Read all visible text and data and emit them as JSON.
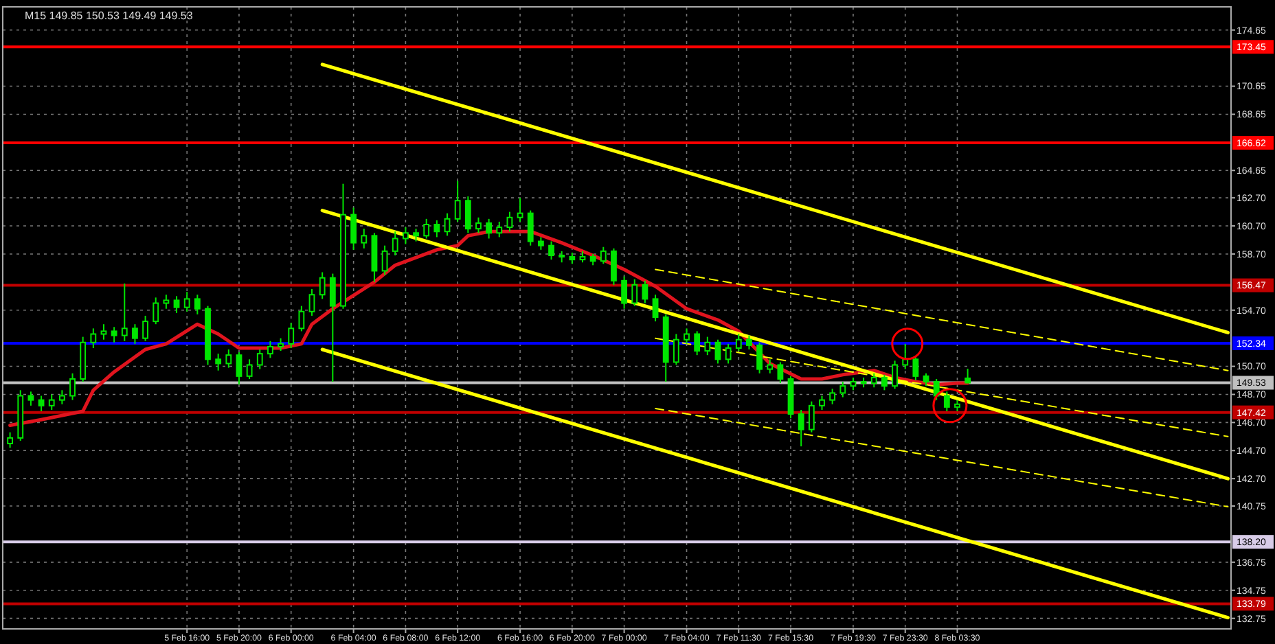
{
  "chart_data": {
    "type": "candlestick",
    "title": "M15 149.85 150.53 149.49 149.53",
    "color": "#00e600",
    "categories": [
      null,
      null,
      null,
      null,
      null,
      null,
      null,
      null,
      null,
      null,
      null,
      null,
      null,
      null,
      null,
      null,
      null,
      "5 Feb 16:00",
      null,
      null,
      null,
      null,
      "5 Feb 20:00",
      null,
      null,
      null,
      null,
      "6 Feb 00:00",
      null,
      null,
      null,
      null,
      null,
      "6 Feb 04:00",
      null,
      null,
      null,
      null,
      "6 Feb 08:00",
      null,
      null,
      null,
      null,
      "6 Feb 12:00",
      null,
      null,
      null,
      null,
      null,
      "6 Feb 16:00",
      null,
      null,
      null,
      null,
      "6 Feb 20:00",
      null,
      null,
      null,
      null,
      "7 Feb 00:00",
      null,
      null,
      null,
      null,
      null,
      "7 Feb 04:00",
      null,
      null,
      null,
      null,
      "7 Feb 11:30",
      null,
      null,
      null,
      null,
      "7 Feb 15:30",
      null,
      null,
      null,
      null,
      null,
      "7 Feb 19:30",
      null,
      null,
      null,
      null,
      "7 Feb 23:30",
      null,
      null,
      null,
      null,
      "8 Feb 03:30",
      null,
      null,
      null,
      null,
      null,
      null,
      null,
      null,
      null,
      null,
      null,
      null,
      null,
      null,
      null,
      null,
      null,
      null,
      null,
      null,
      null,
      null,
      null,
      null,
      null,
      null
    ],
    "ohlc": [
      [
        145.2,
        146.0,
        144.9,
        145.6
      ],
      [
        145.6,
        149.0,
        145.4,
        148.6
      ],
      [
        148.6,
        148.9,
        147.9,
        148.3
      ],
      [
        148.3,
        148.6,
        147.5,
        147.9
      ],
      [
        147.9,
        148.7,
        147.6,
        148.3
      ],
      [
        148.3,
        149.0,
        148.0,
        148.6
      ],
      [
        148.6,
        150.2,
        148.3,
        149.8
      ],
      [
        149.8,
        152.8,
        149.6,
        152.4
      ],
      [
        152.4,
        153.4,
        152.0,
        153.0
      ],
      [
        153.0,
        153.7,
        152.6,
        153.2
      ],
      [
        153.2,
        153.5,
        152.4,
        152.9
      ],
      [
        152.9,
        156.6,
        152.5,
        153.4
      ],
      [
        153.4,
        153.7,
        152.3,
        152.7
      ],
      [
        152.7,
        154.3,
        152.5,
        153.9
      ],
      [
        153.9,
        155.6,
        153.7,
        155.2
      ],
      [
        155.2,
        155.8,
        154.8,
        155.4
      ],
      [
        155.4,
        155.7,
        154.5,
        154.9
      ],
      [
        154.9,
        156.0,
        154.6,
        155.5
      ],
      [
        155.5,
        155.8,
        154.4,
        154.8
      ],
      [
        154.8,
        155.0,
        150.8,
        151.2
      ],
      [
        151.2,
        151.6,
        150.4,
        150.9
      ],
      [
        150.9,
        151.9,
        150.6,
        151.5
      ],
      [
        151.5,
        151.7,
        149.4,
        150.0
      ],
      [
        150.0,
        151.2,
        149.8,
        150.8
      ],
      [
        150.8,
        151.9,
        150.5,
        151.6
      ],
      [
        151.6,
        152.5,
        151.3,
        152.1
      ],
      [
        152.1,
        152.7,
        151.8,
        152.3
      ],
      [
        152.3,
        153.8,
        152.0,
        153.4
      ],
      [
        153.4,
        155.0,
        153.2,
        154.6
      ],
      [
        154.6,
        156.2,
        154.3,
        155.8
      ],
      [
        155.8,
        157.4,
        155.5,
        157.0
      ],
      [
        157.0,
        157.3,
        149.6,
        155.0
      ],
      [
        155.0,
        163.7,
        154.8,
        161.5
      ],
      [
        161.5,
        162.0,
        159.0,
        159.5
      ],
      [
        159.5,
        160.5,
        159.1,
        160.0
      ],
      [
        160.0,
        160.2,
        156.7,
        157.5
      ],
      [
        157.5,
        159.3,
        157.2,
        158.9
      ],
      [
        158.9,
        160.3,
        158.6,
        159.8
      ],
      [
        159.8,
        160.6,
        159.4,
        160.2
      ],
      [
        160.2,
        160.5,
        159.6,
        160.0
      ],
      [
        160.0,
        161.2,
        159.8,
        160.8
      ],
      [
        160.8,
        161.1,
        159.9,
        160.3
      ],
      [
        160.3,
        161.6,
        160.0,
        161.2
      ],
      [
        161.2,
        163.9,
        161.0,
        162.5
      ],
      [
        162.5,
        162.8,
        160.2,
        160.5
      ],
      [
        160.5,
        161.3,
        160.2,
        160.9
      ],
      [
        160.9,
        161.2,
        159.8,
        160.2
      ],
      [
        160.2,
        161.0,
        159.9,
        160.6
      ],
      [
        160.6,
        161.7,
        160.3,
        161.3
      ],
      [
        161.3,
        162.7,
        161.0,
        161.6
      ],
      [
        161.6,
        161.8,
        159.3,
        159.6
      ],
      [
        159.6,
        159.9,
        159.0,
        159.3
      ],
      [
        159.3,
        159.6,
        158.3,
        158.6
      ],
      [
        158.6,
        158.9,
        158.1,
        158.5
      ],
      [
        158.5,
        158.8,
        158.0,
        158.3
      ],
      [
        158.3,
        158.9,
        158.1,
        158.5
      ],
      [
        158.5,
        158.7,
        157.9,
        158.2
      ],
      [
        158.2,
        159.2,
        158.0,
        158.9
      ],
      [
        158.9,
        159.1,
        156.5,
        156.8
      ],
      [
        156.8,
        157.1,
        154.8,
        155.2
      ],
      [
        155.2,
        156.9,
        155.0,
        156.5
      ],
      [
        156.5,
        156.8,
        155.2,
        155.5
      ],
      [
        155.5,
        155.8,
        153.9,
        154.2
      ],
      [
        154.2,
        154.4,
        149.6,
        151.0
      ],
      [
        151.0,
        153.0,
        150.8,
        152.6
      ],
      [
        152.6,
        153.4,
        152.3,
        153.0
      ],
      [
        153.0,
        153.2,
        151.5,
        151.8
      ],
      [
        151.8,
        152.8,
        151.5,
        152.4
      ],
      [
        152.4,
        152.6,
        150.9,
        151.2
      ],
      [
        151.2,
        152.3,
        150.9,
        152.0
      ],
      [
        152.0,
        153.0,
        151.8,
        152.6
      ],
      [
        152.6,
        152.9,
        151.9,
        152.2
      ],
      [
        152.2,
        152.4,
        150.2,
        150.5
      ],
      [
        150.5,
        151.2,
        150.2,
        150.8
      ],
      [
        150.8,
        151.0,
        149.5,
        149.8
      ],
      [
        149.8,
        150.0,
        147.0,
        147.3
      ],
      [
        147.3,
        147.6,
        145.0,
        146.2
      ],
      [
        146.2,
        148.2,
        146.0,
        147.9
      ],
      [
        147.9,
        148.6,
        147.6,
        148.3
      ],
      [
        148.3,
        149.1,
        148.0,
        148.8
      ],
      [
        148.8,
        149.6,
        148.5,
        149.3
      ],
      [
        149.3,
        149.9,
        149.0,
        149.6
      ],
      [
        149.6,
        149.9,
        149.2,
        149.5
      ],
      [
        149.5,
        150.2,
        149.2,
        149.9
      ],
      [
        149.9,
        150.1,
        149.0,
        149.3
      ],
      [
        149.3,
        151.1,
        149.1,
        150.8
      ],
      [
        150.8,
        152.3,
        150.5,
        151.2
      ],
      [
        151.2,
        151.4,
        149.7,
        150.0
      ],
      [
        150.0,
        150.2,
        149.3,
        149.6
      ],
      [
        149.6,
        149.8,
        148.3,
        148.6
      ],
      [
        148.6,
        148.9,
        147.5,
        147.8
      ],
      [
        147.8,
        148.3,
        147.5,
        148.0
      ],
      [
        149.85,
        150.53,
        149.49,
        149.53
      ],
      null,
      null,
      null,
      null,
      null,
      null,
      null,
      null,
      null,
      null,
      null,
      null,
      null,
      null,
      null,
      null,
      null,
      null,
      null,
      null,
      null,
      null,
      null,
      null,
      null
    ],
    "series": [
      {
        "type": "line",
        "color": "#e0141e",
        "values": [
          146.5,
          null,
          null,
          146.9,
          null,
          null,
          null,
          147.5,
          149.0,
          null,
          150.3,
          null,
          null,
          151.9,
          null,
          152.3,
          null,
          null,
          153.7,
          null,
          153.0,
          null,
          152.0,
          null,
          null,
          null,
          152.0,
          null,
          152.3,
          153.7,
          null,
          154.8,
          null,
          null,
          null,
          156.7,
          null,
          157.9,
          null,
          null,
          null,
          159.0,
          null,
          159.3,
          160.0,
          null,
          160.3,
          null,
          null,
          null,
          160.3,
          null,
          null,
          159.5,
          null,
          null,
          158.6,
          null,
          null,
          157.6,
          null,
          null,
          156.4,
          null,
          null,
          154.8,
          null,
          null,
          154.0,
          null,
          153.2,
          null,
          null,
          150.9,
          null,
          null,
          149.8,
          null,
          149.8,
          null,
          150.1,
          null,
          null,
          150.4,
          null,
          149.9,
          null,
          149.6,
          null,
          149.4,
          null,
          149.5,
          149.5,
          null,
          null,
          null,
          null,
          null,
          null,
          null,
          null,
          null,
          null,
          null,
          null,
          null,
          null,
          null,
          null,
          null,
          null,
          null,
          null,
          null,
          null,
          null,
          null,
          null
        ]
      },
      {
        "type": "line",
        "color": "#ffff00",
        "values": [
          null,
          null,
          null,
          null,
          null,
          null,
          null,
          null,
          null,
          null,
          null,
          null,
          null,
          null,
          null,
          null,
          null,
          null,
          null,
          null,
          null,
          null,
          null,
          null,
          null,
          null,
          null,
          null,
          null,
          null,
          172.2,
          null,
          null,
          null,
          null,
          null,
          null,
          null,
          null,
          null,
          null,
          null,
          null,
          null,
          null,
          null,
          null,
          null,
          null,
          null,
          null,
          null,
          null,
          null,
          null,
          null,
          null,
          null,
          null,
          null,
          null,
          null,
          null,
          null,
          null,
          null,
          null,
          null,
          null,
          null,
          null,
          null,
          null,
          null,
          null,
          null,
          null,
          null,
          null,
          null,
          null,
          null,
          null,
          null,
          null,
          null,
          null,
          null,
          null,
          null,
          null,
          null,
          null,
          null,
          null,
          null,
          null,
          null,
          null,
          null,
          null,
          null,
          null,
          null,
          null,
          null,
          null,
          null,
          null,
          null,
          null,
          null,
          null,
          null,
          null,
          null,
          null,
          153.1
        ]
      },
      {
        "type": "line",
        "color": "#ffff00",
        "values": [
          null,
          null,
          null,
          null,
          null,
          null,
          null,
          null,
          null,
          null,
          null,
          null,
          null,
          null,
          null,
          null,
          null,
          null,
          null,
          null,
          null,
          null,
          null,
          null,
          null,
          null,
          null,
          null,
          null,
          null,
          161.8,
          null,
          null,
          null,
          null,
          null,
          null,
          null,
          null,
          null,
          null,
          null,
          null,
          null,
          null,
          null,
          null,
          null,
          null,
          null,
          null,
          null,
          null,
          null,
          null,
          null,
          null,
          null,
          null,
          null,
          null,
          null,
          null,
          null,
          null,
          null,
          null,
          null,
          null,
          null,
          null,
          null,
          null,
          null,
          null,
          null,
          null,
          null,
          null,
          null,
          null,
          null,
          null,
          null,
          null,
          null,
          null,
          null,
          null,
          null,
          null,
          null,
          null,
          null,
          null,
          null,
          null,
          null,
          null,
          null,
          null,
          null,
          null,
          null,
          null,
          null,
          null,
          null,
          null,
          null,
          null,
          null,
          null,
          null,
          null,
          null,
          null,
          142.7
        ]
      },
      {
        "type": "line",
        "color": "#ffff00",
        "values": [
          null,
          null,
          null,
          null,
          null,
          null,
          null,
          null,
          null,
          null,
          null,
          null,
          null,
          null,
          null,
          null,
          null,
          null,
          null,
          null,
          null,
          null,
          null,
          null,
          null,
          null,
          null,
          null,
          null,
          null,
          151.9,
          null,
          null,
          null,
          null,
          null,
          null,
          null,
          null,
          null,
          null,
          null,
          null,
          null,
          null,
          null,
          null,
          null,
          null,
          null,
          null,
          null,
          null,
          null,
          null,
          null,
          null,
          null,
          null,
          null,
          null,
          null,
          null,
          null,
          null,
          null,
          null,
          null,
          null,
          null,
          null,
          null,
          null,
          null,
          null,
          null,
          null,
          null,
          null,
          null,
          null,
          null,
          null,
          null,
          null,
          null,
          null,
          null,
          null,
          null,
          null,
          null,
          null,
          null,
          null,
          null,
          null,
          null,
          null,
          null,
          null,
          null,
          null,
          null,
          null,
          null,
          null,
          null,
          null,
          null,
          null,
          null,
          null,
          null,
          null,
          null,
          null,
          132.8
        ]
      },
      {
        "type": "line",
        "color": "#ffff00",
        "line_style": "dashed",
        "values": [
          null,
          null,
          null,
          null,
          null,
          null,
          null,
          null,
          null,
          null,
          null,
          null,
          null,
          null,
          null,
          null,
          null,
          null,
          null,
          null,
          null,
          null,
          null,
          null,
          null,
          null,
          null,
          null,
          null,
          null,
          null,
          null,
          null,
          null,
          null,
          null,
          null,
          null,
          null,
          null,
          null,
          null,
          null,
          null,
          null,
          null,
          null,
          null,
          null,
          null,
          null,
          null,
          null,
          null,
          null,
          null,
          null,
          null,
          null,
          null,
          null,
          null,
          157.6,
          null,
          null,
          null,
          null,
          null,
          null,
          null,
          null,
          null,
          null,
          null,
          null,
          null,
          null,
          null,
          null,
          null,
          null,
          null,
          null,
          null,
          null,
          null,
          null,
          null,
          null,
          null,
          null,
          null,
          null,
          null,
          null,
          null,
          null,
          null,
          null,
          null,
          null,
          null,
          null,
          null,
          null,
          null,
          null,
          null,
          null,
          null,
          null,
          null,
          null,
          null,
          null,
          null,
          null,
          150.4
        ]
      },
      {
        "type": "line",
        "color": "#ffff00",
        "line_style": "dashed",
        "values": [
          null,
          null,
          null,
          null,
          null,
          null,
          null,
          null,
          null,
          null,
          null,
          null,
          null,
          null,
          null,
          null,
          null,
          null,
          null,
          null,
          null,
          null,
          null,
          null,
          null,
          null,
          null,
          null,
          null,
          null,
          null,
          null,
          null,
          null,
          null,
          null,
          null,
          null,
          null,
          null,
          null,
          null,
          null,
          null,
          null,
          null,
          null,
          null,
          null,
          null,
          null,
          null,
          null,
          null,
          null,
          null,
          null,
          null,
          null,
          null,
          null,
          null,
          152.7,
          null,
          null,
          null,
          null,
          null,
          null,
          null,
          null,
          null,
          null,
          null,
          null,
          null,
          null,
          null,
          null,
          null,
          null,
          null,
          null,
          null,
          null,
          null,
          null,
          null,
          null,
          null,
          null,
          null,
          null,
          null,
          null,
          null,
          null,
          null,
          null,
          null,
          null,
          null,
          null,
          null,
          null,
          null,
          null,
          null,
          null,
          null,
          null,
          null,
          null,
          null,
          null,
          null,
          null,
          145.7
        ]
      },
      {
        "type": "line",
        "color": "#ffff00",
        "line_style": "dashed",
        "values": [
          null,
          null,
          null,
          null,
          null,
          null,
          null,
          null,
          null,
          null,
          null,
          null,
          null,
          null,
          null,
          null,
          null,
          null,
          null,
          null,
          null,
          null,
          null,
          null,
          null,
          null,
          null,
          null,
          null,
          null,
          null,
          null,
          null,
          null,
          null,
          null,
          null,
          null,
          null,
          null,
          null,
          null,
          null,
          null,
          null,
          null,
          null,
          null,
          null,
          null,
          null,
          null,
          null,
          null,
          null,
          null,
          null,
          null,
          null,
          null,
          null,
          null,
          147.7,
          null,
          null,
          null,
          null,
          null,
          null,
          null,
          null,
          null,
          null,
          null,
          null,
          null,
          null,
          null,
          null,
          null,
          null,
          null,
          null,
          null,
          null,
          null,
          null,
          null,
          null,
          null,
          null,
          null,
          null,
          null,
          null,
          null,
          null,
          null,
          null,
          null,
          null,
          null,
          null,
          null,
          null,
          null,
          null,
          null,
          null,
          null,
          null,
          null,
          null,
          null,
          null,
          null,
          null,
          140.7
        ]
      }
    ],
    "ref_lines": [
      {
        "axis": "y",
        "value": 173.45,
        "label": "173.45",
        "color": "#ff0000"
      },
      {
        "axis": "y",
        "value": 166.62,
        "label": "166.62",
        "color": "#ff0000"
      },
      {
        "axis": "y",
        "value": 156.47,
        "label": "156.47",
        "color": "#c00000"
      },
      {
        "axis": "y",
        "value": 152.34,
        "label": "152.34",
        "color": "#0000ff"
      },
      {
        "axis": "y",
        "value": 149.53,
        "label": "149.53",
        "color": "#c0c0c0"
      },
      {
        "axis": "y",
        "value": 147.42,
        "label": "147.42",
        "color": "#c00000"
      },
      {
        "axis": "y",
        "value": 138.2,
        "label": "138.20",
        "color": "#d8cce8"
      },
      {
        "axis": "y",
        "value": 133.79,
        "label": "133.79",
        "color": "#c00000"
      }
    ],
    "ylim": [
      132.0,
      176.3
    ],
    "yticks": [
      {
        "value": 174.65,
        "label": "174.65"
      },
      {
        "value": 170.65,
        "label": "170.65"
      },
      {
        "value": 168.65,
        "label": "168.65"
      },
      {
        "value": 164.65,
        "label": "164.65"
      },
      {
        "value": 162.7,
        "label": "162.70"
      },
      {
        "value": 160.7,
        "label": "160.70"
      },
      {
        "value": 158.7,
        "label": "158.70"
      },
      {
        "value": 154.7,
        "label": "154.70"
      },
      {
        "value": 150.7,
        "label": "150.70"
      },
      {
        "value": 148.7,
        "label": "148.70"
      },
      {
        "value": 146.7,
        "label": "146.70"
      },
      {
        "value": 144.7,
        "label": "144.70"
      },
      {
        "value": 142.7,
        "label": "142.70"
      },
      {
        "value": 140.75,
        "label": "140.75"
      },
      {
        "value": 136.75,
        "label": "136.75"
      },
      {
        "value": 134.75,
        "label": "134.75"
      },
      {
        "value": 132.75,
        "label": "132.75"
      }
    ],
    "grid": true
  }
}
